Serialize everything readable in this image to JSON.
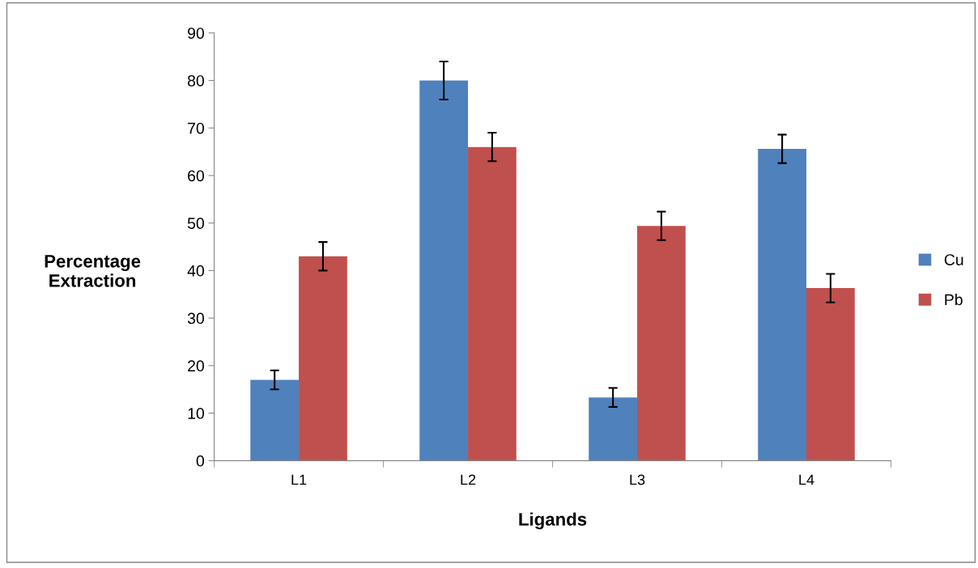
{
  "chart_data": {
    "type": "bar",
    "xlabel": "Ligands",
    "ylabel": "Percentage\nExtraction",
    "categories": [
      "L1",
      "L2",
      "L3",
      "L4"
    ],
    "series": [
      {
        "name": "Cu",
        "color": "#4f81bd",
        "values": [
          17,
          80,
          13.3,
          65.6
        ],
        "errors": [
          2,
          4,
          2,
          3
        ]
      },
      {
        "name": "Pb",
        "color": "#c0504d",
        "values": [
          43,
          66,
          49.4,
          36.3
        ],
        "errors": [
          3,
          3,
          3,
          3
        ]
      }
    ],
    "ylim": [
      0,
      90
    ],
    "yticks": [
      0,
      10,
      20,
      30,
      40,
      50,
      60,
      70,
      80,
      90
    ],
    "grid": false,
    "legend": "right"
  }
}
